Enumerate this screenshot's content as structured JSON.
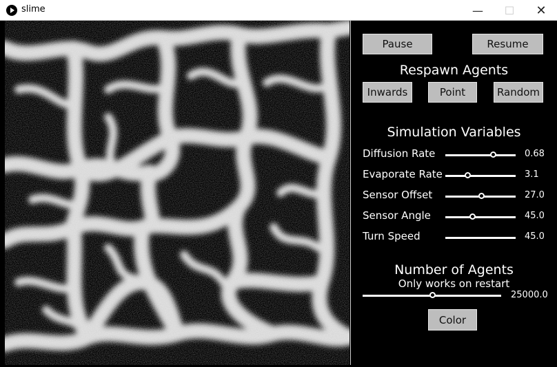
{
  "window": {
    "title": "slime"
  },
  "controls": {
    "pause_label": "Pause",
    "resume_label": "Resume",
    "respawn_heading": "Respawn Agents",
    "respawn_buttons": [
      "Inwards",
      "Point",
      "Random"
    ],
    "simulation_heading": "Simulation Variables",
    "variables": [
      {
        "label": "Diffusion Rate",
        "value": "0.68",
        "position": 0.68
      },
      {
        "label": "Evaporate Rate",
        "value": "3.1",
        "position": 0.31
      },
      {
        "label": "Sensor Offset",
        "value": "27.0",
        "position": 0.51
      },
      {
        "label": "Sensor Angle",
        "value": "45.0",
        "position": 0.38
      },
      {
        "label": "Turn Speed",
        "value": "45.0",
        "position": null
      }
    ],
    "agents_heading": "Number of Agents",
    "agents_note": "Only works on restart",
    "agents_value": "25000.0",
    "agents_position": 0.5,
    "color_label": "Color"
  },
  "colors": {
    "trail": "#ffffff",
    "background": "#000000",
    "button": "#bdbdbd"
  }
}
